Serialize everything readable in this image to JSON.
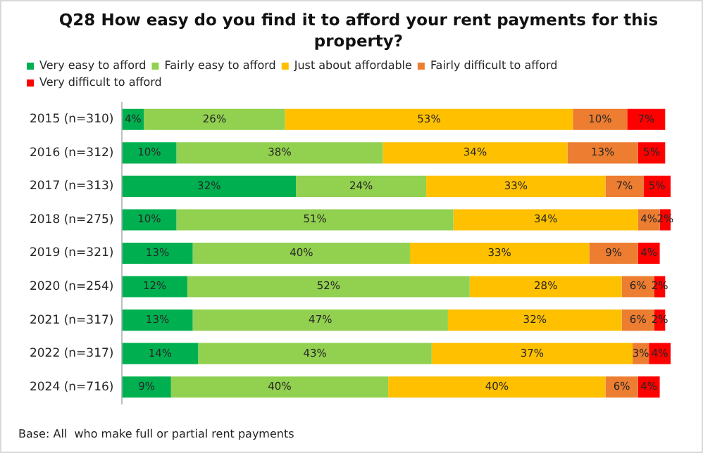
{
  "chart_data": {
    "type": "bar",
    "orientation": "horizontal",
    "stacked": true,
    "title": "Q28 How easy  do you find it to afford your rent payments for this property?",
    "categories": [
      "2015 (n=310)",
      "2016 (n=312)",
      "2017 (n=313)",
      "2018 (n=275)",
      "2019 (n=321)",
      "2020 (n=254)",
      "2021 (n=317)",
      "2022 (n=317)",
      "2024 (n=716)"
    ],
    "series": [
      {
        "name": "Very easy to afford",
        "color": "#00b050",
        "values": [
          4,
          10,
          32,
          10,
          13,
          12,
          13,
          14,
          9
        ],
        "value_labels": [
          "4%",
          "10%",
          "32%",
          "10%",
          "13%",
          "12%",
          "13%",
          "14%",
          "9%"
        ]
      },
      {
        "name": "Fairly easy to afford",
        "color": "#92d050",
        "values": [
          26,
          38,
          24,
          51,
          40,
          52,
          47,
          43,
          40
        ],
        "value_labels": [
          "26%",
          "38%",
          "24%",
          "51%",
          "40%",
          "52%",
          "47%",
          "43%",
          "40%"
        ]
      },
      {
        "name": "Just about affordable",
        "color": "#ffc000",
        "values": [
          53,
          34,
          33,
          34,
          33,
          28,
          32,
          37,
          40
        ],
        "value_labels": [
          "53%",
          "34%",
          "33%",
          "34%",
          "33%",
          "28%",
          "32%",
          "37%",
          "40%"
        ]
      },
      {
        "name": "Fairly difficult to afford",
        "color": "#ed7d31",
        "values": [
          10,
          13,
          7,
          4,
          9,
          6,
          6,
          3,
          6
        ],
        "value_labels": [
          "10%",
          "13%",
          "7%",
          "4%",
          "9%",
          "6%",
          "6%",
          "3%",
          "6%"
        ]
      },
      {
        "name": "Very difficult to afford",
        "color": "#ff0000",
        "values": [
          7,
          5,
          5,
          2,
          4,
          2,
          2,
          4,
          4
        ],
        "value_labels": [
          "7%",
          "5%",
          "5%",
          "2%",
          "4%",
          "2%",
          "2%",
          "4%",
          "4%"
        ]
      }
    ],
    "tick_labels": "y",
    "legend": "top",
    "annotations": [
      "Base: All  who make full or partial rent payments"
    ]
  }
}
